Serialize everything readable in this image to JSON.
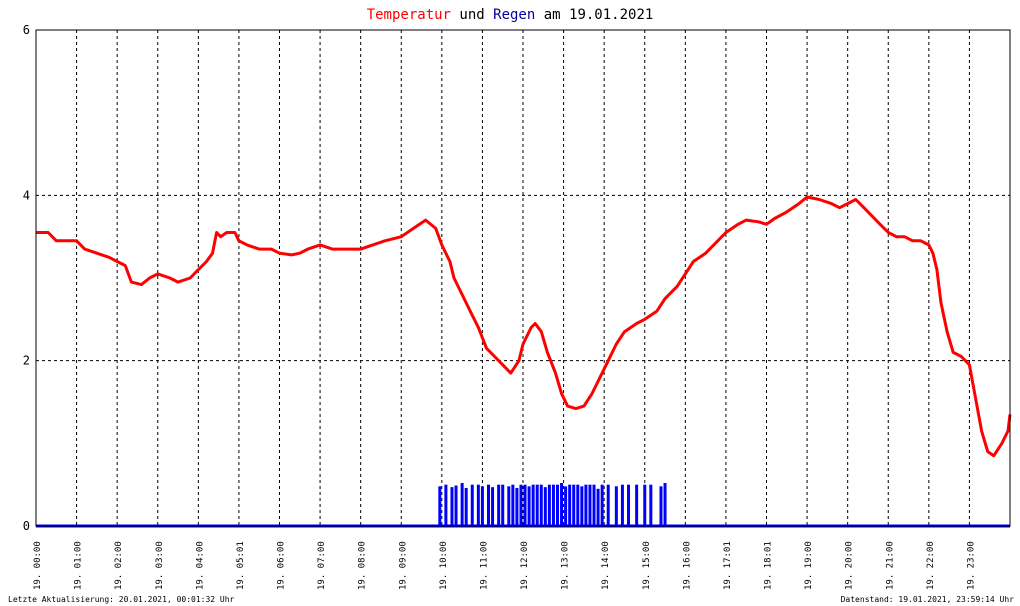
{
  "title": {
    "part1": "Temperatur",
    "part2": " und ",
    "part3": "Regen",
    "part4": " am 19.01.2021"
  },
  "footer": {
    "left": "Letzte Aktualisierung: 20.01.2021, 00:01:32 Uhr",
    "right": "Datenstand: 19.01.2021, 23:59:14 Uhr"
  },
  "colors": {
    "temperature": "#ff0000",
    "rain": "#0000ff",
    "grid": "#000000",
    "text": "#000000"
  },
  "chart_data": {
    "type": "line",
    "title": "Temperatur und Regen am 19.01.2021",
    "xlabel": "",
    "ylabel": "",
    "ylim": [
      0,
      6
    ],
    "yticks": [
      0,
      2,
      4,
      6
    ],
    "x_unit": "hours",
    "xlim": [
      0,
      24
    ],
    "grid": true,
    "xtick_labels": [
      "19. 00:00",
      "19. 01:00",
      "19. 02:00",
      "19. 03:00",
      "19. 04:00",
      "19. 05:01",
      "19. 06:00",
      "19. 07:00",
      "19. 08:00",
      "19. 09:00",
      "19. 10:00",
      "19. 11:00",
      "19. 12:00",
      "19. 13:00",
      "19. 14:00",
      "19. 15:00",
      "19. 16:00",
      "19. 17:01",
      "19. 18:01",
      "19. 19:00",
      "19. 20:00",
      "19. 21:00",
      "19. 22:00",
      "19. 23:00"
    ],
    "series": [
      {
        "name": "Temperatur",
        "style": "line",
        "points": [
          [
            0.0,
            3.55
          ],
          [
            0.3,
            3.55
          ],
          [
            0.5,
            3.45
          ],
          [
            1.0,
            3.45
          ],
          [
            1.2,
            3.35
          ],
          [
            1.5,
            3.3
          ],
          [
            1.8,
            3.25
          ],
          [
            2.0,
            3.2
          ],
          [
            2.2,
            3.15
          ],
          [
            2.35,
            2.95
          ],
          [
            2.6,
            2.92
          ],
          [
            2.8,
            3.0
          ],
          [
            3.0,
            3.05
          ],
          [
            3.3,
            3.0
          ],
          [
            3.5,
            2.95
          ],
          [
            3.8,
            3.0
          ],
          [
            4.0,
            3.1
          ],
          [
            4.2,
            3.2
          ],
          [
            4.35,
            3.3
          ],
          [
            4.45,
            3.55
          ],
          [
            4.55,
            3.5
          ],
          [
            4.7,
            3.55
          ],
          [
            4.9,
            3.55
          ],
          [
            5.0,
            3.45
          ],
          [
            5.2,
            3.4
          ],
          [
            5.5,
            3.35
          ],
          [
            5.8,
            3.35
          ],
          [
            6.0,
            3.3
          ],
          [
            6.3,
            3.28
          ],
          [
            6.5,
            3.3
          ],
          [
            6.7,
            3.35
          ],
          [
            7.0,
            3.4
          ],
          [
            7.3,
            3.35
          ],
          [
            7.6,
            3.35
          ],
          [
            8.0,
            3.35
          ],
          [
            8.3,
            3.4
          ],
          [
            8.6,
            3.45
          ],
          [
            9.0,
            3.5
          ],
          [
            9.3,
            3.6
          ],
          [
            9.6,
            3.7
          ],
          [
            9.85,
            3.6
          ],
          [
            10.0,
            3.4
          ],
          [
            10.2,
            3.2
          ],
          [
            10.3,
            3.0
          ],
          [
            10.5,
            2.8
          ],
          [
            10.7,
            2.6
          ],
          [
            10.9,
            2.4
          ],
          [
            11.1,
            2.15
          ],
          [
            11.3,
            2.05
          ],
          [
            11.5,
            1.95
          ],
          [
            11.7,
            1.85
          ],
          [
            11.9,
            2.0
          ],
          [
            12.0,
            2.2
          ],
          [
            12.2,
            2.4
          ],
          [
            12.3,
            2.45
          ],
          [
            12.45,
            2.35
          ],
          [
            12.6,
            2.1
          ],
          [
            12.8,
            1.85
          ],
          [
            12.95,
            1.6
          ],
          [
            13.1,
            1.45
          ],
          [
            13.3,
            1.42
          ],
          [
            13.5,
            1.45
          ],
          [
            13.7,
            1.6
          ],
          [
            13.9,
            1.8
          ],
          [
            14.1,
            2.0
          ],
          [
            14.3,
            2.2
          ],
          [
            14.5,
            2.35
          ],
          [
            14.8,
            2.45
          ],
          [
            15.0,
            2.5
          ],
          [
            15.3,
            2.6
          ],
          [
            15.5,
            2.75
          ],
          [
            15.8,
            2.9
          ],
          [
            16.0,
            3.05
          ],
          [
            16.2,
            3.2
          ],
          [
            16.5,
            3.3
          ],
          [
            16.8,
            3.45
          ],
          [
            17.0,
            3.55
          ],
          [
            17.3,
            3.65
          ],
          [
            17.5,
            3.7
          ],
          [
            17.8,
            3.68
          ],
          [
            18.0,
            3.65
          ],
          [
            18.2,
            3.72
          ],
          [
            18.5,
            3.8
          ],
          [
            18.8,
            3.9
          ],
          [
            19.0,
            3.98
          ],
          [
            19.3,
            3.95
          ],
          [
            19.6,
            3.9
          ],
          [
            19.8,
            3.85
          ],
          [
            20.0,
            3.9
          ],
          [
            20.2,
            3.95
          ],
          [
            20.4,
            3.85
          ],
          [
            20.6,
            3.75
          ],
          [
            20.8,
            3.65
          ],
          [
            21.0,
            3.55
          ],
          [
            21.2,
            3.5
          ],
          [
            21.4,
            3.5
          ],
          [
            21.6,
            3.45
          ],
          [
            21.8,
            3.45
          ],
          [
            22.0,
            3.4
          ],
          [
            22.1,
            3.3
          ],
          [
            22.2,
            3.1
          ],
          [
            22.3,
            2.7
          ],
          [
            22.45,
            2.35
          ],
          [
            22.6,
            2.1
          ],
          [
            22.8,
            2.05
          ],
          [
            23.0,
            1.95
          ],
          [
            23.15,
            1.55
          ],
          [
            23.3,
            1.15
          ],
          [
            23.45,
            0.9
          ],
          [
            23.6,
            0.85
          ],
          [
            23.8,
            1.0
          ],
          [
            23.95,
            1.15
          ],
          [
            24.0,
            1.35
          ]
        ]
      },
      {
        "name": "Regen",
        "style": "bars",
        "baseline": 0,
        "points": [
          [
            9.95,
            0.48
          ],
          [
            10.1,
            0.5
          ],
          [
            10.25,
            0.47
          ],
          [
            10.35,
            0.49
          ],
          [
            10.5,
            0.52
          ],
          [
            10.6,
            0.46
          ],
          [
            10.75,
            0.5
          ],
          [
            10.9,
            0.5
          ],
          [
            11.0,
            0.48
          ],
          [
            11.15,
            0.5
          ],
          [
            11.25,
            0.47
          ],
          [
            11.4,
            0.5
          ],
          [
            11.5,
            0.5
          ],
          [
            11.65,
            0.48
          ],
          [
            11.75,
            0.5
          ],
          [
            11.85,
            0.46
          ],
          [
            11.95,
            0.5
          ],
          [
            12.05,
            0.5
          ],
          [
            12.15,
            0.48
          ],
          [
            12.25,
            0.5
          ],
          [
            12.35,
            0.5
          ],
          [
            12.45,
            0.5
          ],
          [
            12.55,
            0.47
          ],
          [
            12.65,
            0.5
          ],
          [
            12.75,
            0.5
          ],
          [
            12.85,
            0.5
          ],
          [
            12.95,
            0.52
          ],
          [
            13.05,
            0.48
          ],
          [
            13.15,
            0.5
          ],
          [
            13.25,
            0.5
          ],
          [
            13.35,
            0.5
          ],
          [
            13.45,
            0.48
          ],
          [
            13.55,
            0.5
          ],
          [
            13.65,
            0.5
          ],
          [
            13.75,
            0.5
          ],
          [
            13.85,
            0.45
          ],
          [
            13.95,
            0.5
          ],
          [
            14.1,
            0.5
          ],
          [
            14.3,
            0.48
          ],
          [
            14.45,
            0.5
          ],
          [
            14.6,
            0.5
          ],
          [
            14.8,
            0.5
          ],
          [
            15.0,
            0.5
          ],
          [
            15.15,
            0.5
          ],
          [
            15.4,
            0.48
          ],
          [
            15.5,
            0.52
          ]
        ]
      }
    ]
  }
}
